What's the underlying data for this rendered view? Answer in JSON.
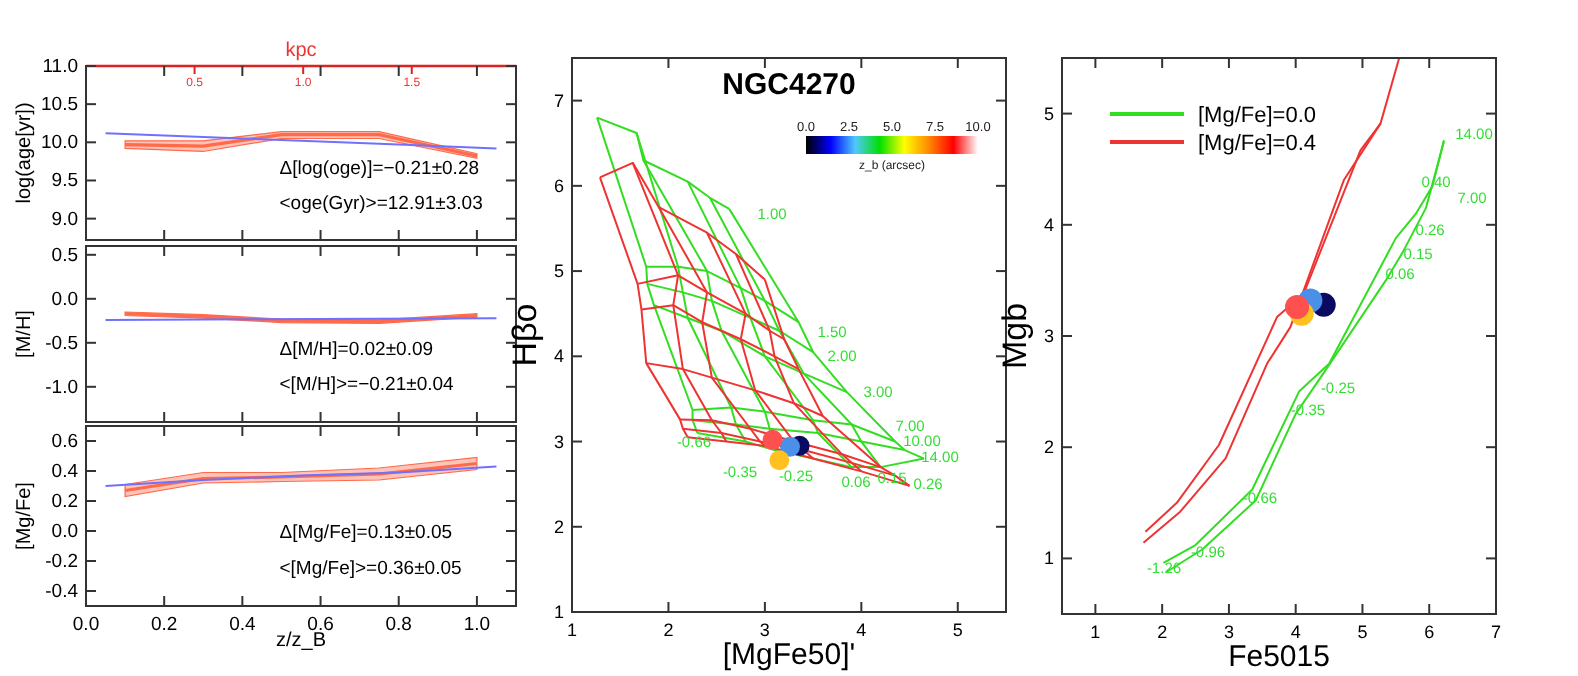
{
  "chart_data": [
    {
      "type": "line",
      "ylabel": "log(age[yr])",
      "x2label": "kpc",
      "xlim": [
        0,
        1.1
      ],
      "xticks": [
        0,
        0.2,
        0.4,
        0.6,
        0.8,
        1
      ],
      "x2lim": [
        0,
        1.98
      ],
      "x2ticks": [
        0.5,
        {
          "value": 1,
          "label": "1.0"
        },
        1.5
      ],
      "ylim": [
        8.72,
        11.0
      ],
      "yticks": [
        {
          "value": 9,
          "label": "9.0"
        },
        9.5,
        {
          "value": 10,
          "label": "10.0"
        },
        10.5,
        {
          "value": 11,
          "label": "11.0"
        }
      ],
      "tick_labels": "y",
      "annotations": [
        "Δ[log(oge)]=−0.21±0.28",
        "<oge(Gyr)>=12.91±3.03"
      ],
      "series": [
        {
          "color": "#7070ff",
          "x": [
            0.05,
            0.3,
            0.55,
            0.8,
            1.05
          ],
          "values": [
            10.12,
            10.07,
            10.02,
            9.97,
            9.92
          ]
        },
        {
          "color": "#ff6a4a",
          "x": [
            0.1,
            0.3,
            0.5,
            0.75,
            1.0
          ],
          "values": [
            9.97,
            9.95,
            10.1,
            10.1,
            9.82
          ],
          "lower": [
            9.92,
            9.88,
            10.05,
            10.05,
            9.79
          ],
          "upper": [
            10.02,
            10.02,
            10.14,
            10.14,
            9.85
          ]
        }
      ]
    },
    {
      "type": "line",
      "ylabel": "[M/H]",
      "xlim": [
        0,
        1.1
      ],
      "xticks": [
        0,
        0.2,
        0.4,
        0.6,
        0.8,
        1
      ],
      "ylim": [
        -1.4,
        0.6
      ],
      "yticks": [
        {
          "value": -1,
          "label": "-1.0"
        },
        -0.5,
        {
          "value": 0,
          "label": "0.0"
        },
        0.5
      ],
      "tick_labels": "y",
      "annotations": [
        "Δ[M/H]=0.02±0.09",
        "<[M/H]>=−0.21±0.04"
      ],
      "series": [
        {
          "color": "#7070ff",
          "x": [
            0.05,
            1.05
          ],
          "values": [
            -0.24,
            -0.22
          ]
        },
        {
          "color": "#ff6a4a",
          "x": [
            0.1,
            0.3,
            0.5,
            0.75,
            1.0
          ],
          "values": [
            -0.17,
            -0.2,
            -0.25,
            -0.26,
            -0.19
          ],
          "lower": [
            -0.19,
            -0.22,
            -0.27,
            -0.28,
            -0.21
          ],
          "upper": [
            -0.15,
            -0.18,
            -0.23,
            -0.24,
            -0.17
          ]
        }
      ]
    },
    {
      "type": "line",
      "xlabel": "z/z_B",
      "ylabel": "[Mg/Fe]",
      "xlim": [
        0,
        1.1
      ],
      "xticks": [
        {
          "value": 0,
          "label": "0.0"
        },
        0.2,
        0.4,
        0.6,
        0.8,
        {
          "value": 1,
          "label": "1.0"
        }
      ],
      "ylim": [
        -0.5,
        0.7
      ],
      "yticks": [
        -0.4,
        -0.2,
        {
          "value": 0,
          "label": "0.0"
        },
        0.2,
        0.4,
        0.6
      ],
      "annotations": [
        "Δ[Mg/Fe]=0.13±0.05",
        "<[Mg/Fe]>=0.36±0.05"
      ],
      "series": [
        {
          "color": "#7070ff",
          "x": [
            0.05,
            0.3,
            0.55,
            0.8,
            1.05
          ],
          "values": [
            0.3,
            0.34,
            0.37,
            0.39,
            0.43
          ]
        },
        {
          "color": "#ff6a4a",
          "x": [
            0.1,
            0.3,
            0.5,
            0.75,
            1.0
          ],
          "values": [
            0.27,
            0.35,
            0.36,
            0.38,
            0.45
          ],
          "lower": [
            0.23,
            0.32,
            0.33,
            0.34,
            0.41
          ],
          "upper": [
            0.31,
            0.39,
            0.39,
            0.42,
            0.49
          ]
        }
      ]
    },
    {
      "type": "line",
      "title": "NGC4270",
      "xlabel": "[MgFe50]'",
      "ylabel": "Hβo",
      "xlim": [
        1,
        5.5
      ],
      "xticks": [
        1,
        2,
        3,
        4,
        5
      ],
      "ylim": [
        1,
        7.5
      ],
      "yticks": [
        1,
        2,
        3,
        4,
        5,
        6,
        7
      ],
      "annotations": [
        "1.00",
        "1.50",
        "2.00",
        "3.00",
        "7.00",
        "10.00",
        "14.00",
        "-0.66",
        "-0.35",
        "-0.25",
        "0.06",
        "0.15",
        "0.26",
        "0.0",
        "2.5",
        "5.0",
        "7.5",
        "10.0",
        "z_b (arcsec)"
      ],
      "series": [
        {
          "color": "#33dd22",
          "x": [
            1.26,
            1.67,
            1.74,
            2.2,
            2.43,
            2.63
          ],
          "values": [
            6.8,
            6.62,
            6.3,
            6.05,
            5.86,
            5.73
          ]
        },
        {
          "color": "#33dd22",
          "x": [
            1.77,
            2.1,
            2.4,
            2.75,
            3.0,
            3.35
          ],
          "values": [
            5.05,
            5.05,
            5.0,
            4.8,
            4.65,
            4.4
          ]
        },
        {
          "color": "#33dd22",
          "x": [
            1.78,
            2.15,
            2.45,
            2.85,
            3.15,
            3.5
          ],
          "values": [
            4.85,
            4.75,
            4.65,
            4.45,
            4.3,
            4.05
          ]
        },
        {
          "color": "#33dd22",
          "x": [
            1.85,
            2.2,
            2.55,
            3.0,
            3.4,
            3.85
          ],
          "values": [
            4.6,
            4.45,
            4.3,
            4.0,
            3.8,
            3.58
          ]
        },
        {
          "color": "#33dd22",
          "x": [
            2.25,
            2.65,
            3.0,
            3.5,
            3.9,
            4.35
          ],
          "values": [
            3.37,
            3.4,
            3.35,
            3.25,
            3.2,
            3.0
          ]
        },
        {
          "color": "#33dd22",
          "x": [
            2.25,
            2.7,
            3.05,
            3.55,
            4.0,
            4.45
          ],
          "values": [
            3.25,
            3.2,
            3.15,
            3.1,
            3.0,
            2.9
          ]
        },
        {
          "color": "#33dd22",
          "x": [
            2.3,
            2.8,
            3.1,
            3.9,
            4.2,
            4.65
          ],
          "values": [
            3.1,
            3.0,
            2.9,
            2.7,
            2.7,
            2.8
          ]
        },
        {
          "color": "#33dd22",
          "x": [
            1.26,
            1.77,
            1.78,
            1.85,
            2.25,
            2.25,
            2.3
          ],
          "values": [
            6.8,
            5.05,
            4.85,
            4.6,
            3.37,
            3.25,
            3.1
          ]
        },
        {
          "color": "#33dd22",
          "x": [
            1.67,
            2.1,
            2.15,
            2.2,
            2.65,
            2.7,
            2.8
          ],
          "values": [
            6.62,
            5.05,
            4.75,
            4.45,
            3.4,
            3.2,
            3.0
          ]
        },
        {
          "color": "#33dd22",
          "x": [
            1.74,
            2.4,
            2.45,
            2.55,
            3.0,
            3.05,
            3.1
          ],
          "values": [
            6.3,
            5.0,
            4.65,
            4.3,
            3.35,
            3.15,
            2.9
          ]
        },
        {
          "color": "#33dd22",
          "x": [
            2.2,
            2.75,
            2.85,
            3.0,
            3.5,
            3.55,
            3.9
          ],
          "values": [
            6.05,
            4.8,
            4.45,
            4.0,
            3.25,
            3.1,
            2.7
          ]
        },
        {
          "color": "#33dd22",
          "x": [
            2.43,
            3.0,
            3.15,
            3.4,
            3.9,
            4.0,
            4.2
          ],
          "values": [
            5.86,
            4.65,
            4.3,
            3.8,
            3.2,
            3.0,
            2.7
          ]
        },
        {
          "color": "#33dd22",
          "x": [
            2.63,
            3.35,
            3.5,
            3.85,
            4.35,
            4.45,
            4.65
          ],
          "values": [
            5.73,
            4.4,
            4.05,
            3.58,
            3.0,
            2.9,
            2.8
          ]
        },
        {
          "color": "#ee3333",
          "x": [
            1.29,
            1.63,
            1.9,
            2.4,
            2.7,
            3.0
          ],
          "values": [
            6.1,
            6.27,
            5.75,
            5.45,
            5.2,
            4.9
          ]
        },
        {
          "color": "#ee3333",
          "x": [
            1.68,
            2.1,
            2.4,
            2.8,
            3.05,
            3.2
          ],
          "values": [
            4.85,
            4.95,
            4.75,
            4.5,
            4.3,
            4.2
          ]
        },
        {
          "color": "#ee3333",
          "x": [
            1.72,
            2.05,
            2.35,
            2.75,
            3.1,
            3.35
          ],
          "values": [
            4.55,
            4.6,
            4.4,
            4.2,
            4.0,
            3.85
          ]
        },
        {
          "color": "#ee3333",
          "x": [
            1.77,
            2.15,
            2.45,
            2.9,
            3.3,
            3.6
          ],
          "values": [
            3.92,
            3.85,
            3.75,
            3.6,
            3.45,
            3.3
          ]
        },
        {
          "color": "#ee3333",
          "x": [
            2.12,
            2.45,
            2.85,
            3.3,
            3.8,
            4.2
          ],
          "values": [
            3.26,
            3.25,
            3.15,
            3.0,
            2.85,
            2.7
          ]
        },
        {
          "color": "#ee3333",
          "x": [
            2.15,
            2.55,
            2.95,
            3.4,
            3.9,
            4.35
          ],
          "values": [
            3.15,
            3.1,
            3.0,
            2.9,
            2.75,
            2.6
          ]
        },
        {
          "color": "#ee3333",
          "x": [
            2.2,
            2.6,
            3.0,
            3.5,
            4.0,
            4.5
          ],
          "values": [
            3.05,
            3.0,
            2.95,
            2.8,
            2.65,
            2.48
          ]
        },
        {
          "color": "#ee3333",
          "x": [
            1.29,
            1.68,
            1.72,
            1.77,
            2.12,
            2.15,
            2.2
          ],
          "values": [
            6.1,
            4.85,
            4.55,
            3.92,
            3.26,
            3.15,
            3.05
          ]
        },
        {
          "color": "#ee3333",
          "x": [
            1.63,
            2.1,
            2.05,
            2.15,
            2.45,
            2.55,
            2.6
          ],
          "values": [
            6.27,
            4.95,
            4.6,
            3.85,
            3.25,
            3.1,
            3.0
          ]
        },
        {
          "color": "#ee3333",
          "x": [
            1.9,
            2.4,
            2.35,
            2.45,
            2.85,
            2.95,
            3.0
          ],
          "values": [
            5.75,
            4.75,
            4.4,
            3.75,
            3.15,
            3.0,
            2.95
          ]
        },
        {
          "color": "#ee3333",
          "x": [
            2.4,
            2.8,
            2.75,
            2.9,
            3.3,
            3.4,
            3.5
          ],
          "values": [
            5.45,
            4.5,
            4.2,
            3.6,
            3.0,
            2.9,
            2.8
          ]
        },
        {
          "color": "#ee3333",
          "x": [
            2.7,
            3.05,
            3.1,
            3.3,
            3.8,
            3.9,
            4.0
          ],
          "values": [
            5.2,
            4.3,
            4.0,
            3.45,
            2.85,
            2.75,
            2.65
          ]
        },
        {
          "color": "#ee3333",
          "x": [
            3.0,
            3.2,
            3.35,
            3.6,
            4.2,
            4.35,
            4.5
          ],
          "values": [
            4.9,
            4.2,
            3.85,
            3.3,
            2.7,
            2.6,
            2.48
          ]
        },
        {
          "type": "scatter",
          "marker": "circle",
          "x": [
            3.36,
            3.26,
            3.15,
            3.08
          ],
          "values": [
            2.95,
            2.94,
            2.78,
            3.02
          ],
          "colors": [
            "#0a0a60",
            "#4a90e8",
            "#ffc020",
            "#ff5050"
          ]
        }
      ]
    },
    {
      "type": "line",
      "xlabel": "Fe5015",
      "ylabel": "Mgb",
      "legend": "top left",
      "xlim": [
        0.5,
        7
      ],
      "xticks": [
        1,
        2,
        3,
        4,
        5,
        6,
        7
      ],
      "ylim": [
        0.5,
        5.5
      ],
      "yticks": [
        1,
        2,
        3,
        4,
        5
      ],
      "annotations": [
        "14.00",
        "0.40",
        "7.00",
        "0.26",
        "0.15",
        "0.06",
        "-0.25",
        "-0.35",
        "-0.66",
        "-0.96",
        "-1.26"
      ],
      "series": [
        {
          "name": "[Mg/Fe]=0.0",
          "color": "#33dd22",
          "x": [
            2.07,
            2.6,
            3.4,
            4.0,
            4.4,
            5.35,
            5.6,
            5.95,
            6.22
          ],
          "values": [
            0.88,
            1.08,
            1.52,
            2.3,
            2.65,
            3.5,
            3.75,
            4.15,
            4.75
          ]
        },
        {
          "color": "#33dd22",
          "x": [
            2.02,
            2.5,
            3.35,
            4.05,
            4.5,
            5.5,
            5.8,
            6.05,
            6.22
          ],
          "values": [
            0.96,
            1.12,
            1.62,
            2.5,
            2.75,
            3.88,
            4.1,
            4.35,
            4.76
          ]
        },
        {
          "name": "[Mg/Fe]=0.4",
          "color": "#ee3333",
          "x": [
            1.72,
            2.27,
            2.95,
            3.57,
            3.92,
            4.72,
            5.27,
            5.55
          ],
          "values": [
            1.14,
            1.42,
            1.9,
            2.75,
            3.08,
            4.4,
            4.91,
            5.5
          ]
        },
        {
          "color": "#ee3333",
          "x": [
            1.75,
            2.22,
            2.85,
            3.72,
            4.12,
            4.97,
            5.27
          ],
          "values": [
            1.24,
            1.5,
            2.02,
            3.17,
            3.38,
            4.67,
            4.91
          ]
        },
        {
          "type": "scatter",
          "marker": "circle",
          "x": [
            4.42,
            4.22,
            4.09,
            4.02
          ],
          "values": [
            3.28,
            3.32,
            3.2,
            3.26
          ],
          "colors": [
            "#0a0a60",
            "#4a90e8",
            "#ffc020",
            "#ff5050"
          ]
        }
      ]
    }
  ]
}
